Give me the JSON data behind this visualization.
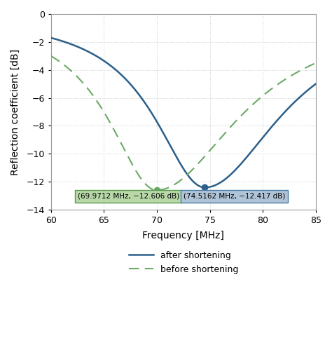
{
  "xlabel": "Frequency [MHz]",
  "ylabel": "Reflection coefficient [dB]",
  "xlim": [
    60,
    85
  ],
  "ylim": [
    -14,
    0
  ],
  "xticks": [
    60,
    65,
    70,
    75,
    80,
    85
  ],
  "yticks": [
    0,
    -2,
    -4,
    -6,
    -8,
    -10,
    -12,
    -14
  ],
  "after_min_x": 74.5162,
  "after_min_y": -12.417,
  "before_min_x": 69.9712,
  "before_min_y": -12.606,
  "after_color": "#2c5f8a",
  "before_color": "#6aaa64",
  "after_label": "after shortening",
  "before_label": "before shortening",
  "after_annotation": "(74.5162 MHz, −12.417 dB)",
  "before_annotation": "(69.9712 MHz, −12.606 dB)",
  "after_box_color": "#b0c4d8",
  "before_box_color": "#b8d8a8",
  "after_border_color": "#4a7fa8",
  "before_border_color": "#5a9a50",
  "background_color": "#ffffff",
  "grid_color": "#cccccc"
}
